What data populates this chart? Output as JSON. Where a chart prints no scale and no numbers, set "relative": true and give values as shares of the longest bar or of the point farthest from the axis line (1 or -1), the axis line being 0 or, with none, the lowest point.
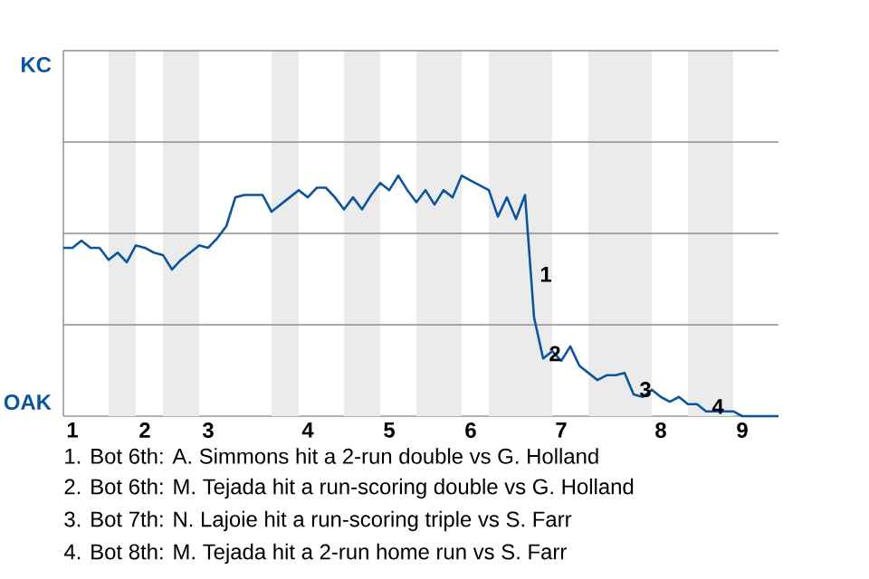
{
  "chart_data": {
    "type": "line",
    "relative": true,
    "categories": [
      null,
      "1",
      null,
      null,
      null,
      null,
      null,
      null,
      null,
      "2",
      null,
      null,
      null,
      null,
      null,
      null,
      "3",
      null,
      null,
      null,
      null,
      null,
      null,
      null,
      null,
      null,
      null,
      "4",
      null,
      null,
      null,
      null,
      null,
      null,
      null,
      null,
      "5",
      null,
      null,
      null,
      null,
      null,
      null,
      null,
      null,
      "6",
      null,
      null,
      null,
      null,
      null,
      null,
      null,
      null,
      null,
      "7",
      null,
      null,
      null,
      null,
      null,
      null,
      null,
      null,
      null,
      null,
      "8",
      null,
      null,
      null,
      null,
      null,
      null,
      null,
      null,
      "9",
      null,
      null,
      null,
      null
    ],
    "series": [
      {
        "color": "#0b559c",
        "values": [
          0.7,
          0.7,
          0.73,
          0.7,
          0.7,
          0.65,
          0.68,
          0.64,
          0.71,
          0.7,
          0.68,
          0.67,
          0.61,
          0.65,
          0.68,
          0.71,
          0.7,
          0.74,
          0.79,
          0.91,
          0.92,
          0.92,
          0.92,
          0.85,
          0.88,
          0.91,
          0.94,
          0.91,
          0.95,
          0.95,
          0.91,
          0.86,
          0.91,
          0.86,
          0.92,
          0.97,
          0.94,
          1,
          0.94,
          0.89,
          0.94,
          0.88,
          0.94,
          0.91,
          1,
          0.98,
          0.96,
          0.94,
          0.83,
          0.91,
          0.82,
          0.92,
          0.41,
          0.24,
          0.27,
          0.23,
          0.29,
          0.21,
          0.18,
          0.15,
          0.17,
          0.17,
          0.18,
          0.09,
          0.08,
          0.11,
          0.08,
          0.06,
          0.08,
          0.05,
          0.05,
          0.02,
          0.02,
          0.02,
          0.02,
          0,
          0,
          0,
          0,
          0
        ]
      }
    ],
    "line_style": "solid",
    "ref_lines": [
      {
        "axis": "y",
        "value": 0.38,
        "color": "#8c8c8c"
      },
      {
        "axis": "y",
        "value": 0.76,
        "color": "#8c8c8c"
      },
      {
        "axis": "y",
        "value": 1.14,
        "color": "#8c8c8c"
      },
      {
        "axis": "y",
        "value": 1.52,
        "color": "#8c8c8c"
      }
    ],
    "annotations": [
      "KC",
      "OAK",
      "1",
      "2",
      "3",
      "4",
      "1. Bot 6th: A. Simmons hit a 2-run double vs G. Holland",
      "2. Bot 6th: M. Tejada hit a run-scoring double vs G. Holland",
      "3. Bot 7th: N. Lajoie hit a run-scoring triple vs S. Farr",
      "4. Bot 8th: M. Tejada hit a 2-run home run vs S. Farr"
    ]
  }
}
